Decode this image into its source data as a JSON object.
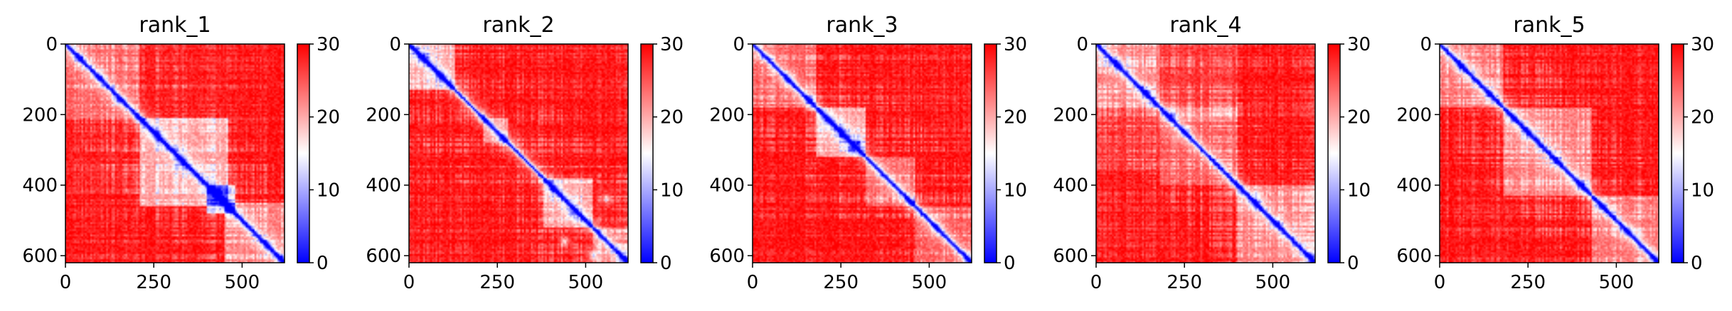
{
  "chart_data": [
    {
      "type": "heatmap",
      "title": "rank_1",
      "xlim": [
        0,
        620
      ],
      "ylim": [
        620,
        0
      ],
      "x_ticks": [
        0,
        250,
        500
      ],
      "y_ticks": [
        0,
        200,
        400,
        600
      ],
      "colorbar": {
        "min": 0,
        "max": 30,
        "ticks": [
          0,
          10,
          20,
          30
        ]
      },
      "blocks": [
        [
          0,
          210,
          0,
          0.35
        ],
        [
          210,
          460,
          0,
          0.05
        ],
        [
          0,
          210,
          210,
          0.05
        ],
        [
          210,
          460,
          210,
          0.6
        ],
        [
          400,
          480,
          400,
          0.8
        ],
        [
          450,
          620,
          450,
          0.45
        ]
      ],
      "hotspots": [
        [
          40,
          40
        ],
        [
          95,
          95
        ],
        [
          150,
          160
        ],
        [
          210,
          210
        ],
        [
          260,
          260
        ],
        [
          330,
          330
        ],
        [
          430,
          420
        ],
        [
          455,
          455
        ],
        [
          570,
          570
        ],
        [
          610,
          610
        ]
      ]
    },
    {
      "type": "heatmap",
      "title": "rank_2",
      "xlim": [
        0,
        620
      ],
      "ylim": [
        620,
        0
      ],
      "x_ticks": [
        0,
        250,
        500
      ],
      "y_ticks": [
        0,
        200,
        400,
        600
      ],
      "colorbar": {
        "min": 0,
        "max": 30,
        "ticks": [
          0,
          10,
          20,
          30
        ]
      },
      "blocks": [
        [
          0,
          130,
          0,
          0.6
        ],
        [
          210,
          280,
          210,
          0.45
        ],
        [
          380,
          520,
          380,
          0.55
        ],
        [
          520,
          620,
          520,
          0.4
        ]
      ],
      "hotspots": [
        [
          40,
          40
        ],
        [
          90,
          90
        ],
        [
          210,
          210
        ],
        [
          270,
          270
        ],
        [
          410,
          410
        ],
        [
          460,
          480
        ],
        [
          560,
          440
        ],
        [
          440,
          560
        ],
        [
          520,
          600
        ],
        [
          610,
          610
        ]
      ]
    },
    {
      "type": "heatmap",
      "title": "rank_3",
      "xlim": [
        0,
        620
      ],
      "ylim": [
        620,
        0
      ],
      "x_ticks": [
        0,
        250,
        500
      ],
      "y_ticks": [
        0,
        200,
        400,
        600
      ],
      "colorbar": {
        "min": 0,
        "max": 30,
        "ticks": [
          0,
          10,
          20,
          30
        ]
      },
      "blocks": [
        [
          0,
          180,
          0,
          0.3
        ],
        [
          180,
          320,
          180,
          0.6
        ],
        [
          320,
          460,
          320,
          0.35
        ],
        [
          460,
          620,
          460,
          0.3
        ]
      ],
      "hotspots": [
        [
          100,
          100
        ],
        [
          160,
          160
        ],
        [
          215,
          215
        ],
        [
          255,
          255
        ],
        [
          280,
          300
        ],
        [
          300,
          280
        ],
        [
          450,
          450
        ],
        [
          520,
          520
        ],
        [
          610,
          610
        ]
      ]
    },
    {
      "type": "heatmap",
      "title": "rank_4",
      "xlim": [
        0,
        620
      ],
      "ylim": [
        620,
        0
      ],
      "x_ticks": [
        0,
        250,
        500
      ],
      "y_ticks": [
        0,
        200,
        400,
        600
      ],
      "colorbar": {
        "min": 0,
        "max": 30,
        "ticks": [
          0,
          10,
          20,
          30
        ]
      },
      "blocks": [
        [
          0,
          180,
          0,
          0.45
        ],
        [
          180,
          400,
          180,
          0.3
        ],
        [
          400,
          620,
          400,
          0.45
        ],
        [
          0,
          180,
          180,
          0.15
        ],
        [
          180,
          400,
          0,
          0.15
        ]
      ],
      "hotspots": [
        [
          60,
          60
        ],
        [
          140,
          140
        ],
        [
          210,
          210
        ],
        [
          250,
          250
        ],
        [
          400,
          400
        ],
        [
          450,
          450
        ],
        [
          510,
          510
        ],
        [
          610,
          610
        ]
      ]
    },
    {
      "type": "heatmap",
      "title": "rank_5",
      "xlim": [
        0,
        620
      ],
      "ylim": [
        620,
        0
      ],
      "x_ticks": [
        0,
        250,
        500
      ],
      "y_ticks": [
        0,
        200,
        400,
        600
      ],
      "colorbar": {
        "min": 0,
        "max": 30,
        "ticks": [
          0,
          10,
          20,
          30
        ]
      },
      "blocks": [
        [
          0,
          180,
          0,
          0.4
        ],
        [
          180,
          430,
          180,
          0.45
        ],
        [
          430,
          620,
          430,
          0.4
        ]
      ],
      "hotspots": [
        [
          60,
          60
        ],
        [
          140,
          140
        ],
        [
          210,
          210
        ],
        [
          250,
          250
        ],
        [
          330,
          330
        ],
        [
          400,
          400
        ],
        [
          460,
          460
        ],
        [
          530,
          530
        ],
        [
          610,
          610
        ]
      ]
    }
  ],
  "colors": {
    "low": "#0000ff",
    "mid": "#ffffff",
    "high": "#ff0000"
  }
}
